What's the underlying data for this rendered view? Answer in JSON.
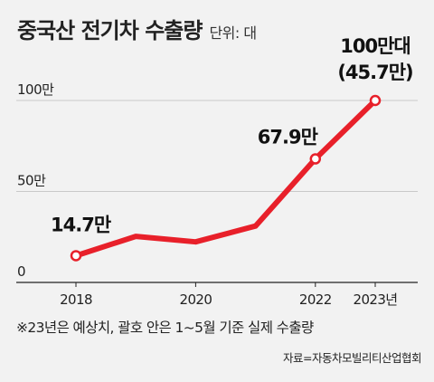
{
  "header": {
    "title": "중국산 전기차 수출량",
    "unit": "단위: 대"
  },
  "chart_data": {
    "type": "line",
    "title": "중국산 전기차 수출량",
    "unit": "단위: 대",
    "x": [
      2018,
      2019,
      2020,
      2021,
      2022,
      2023
    ],
    "x_tick_labels": [
      "2018",
      "2020",
      "2022",
      "2023년"
    ],
    "x_tick_values": [
      2018,
      2020,
      2022,
      2023
    ],
    "y_tick_labels": [
      "0",
      "50만",
      "100만"
    ],
    "y_tick_values": [
      0,
      500000,
      1000000
    ],
    "ylim": [
      0,
      1000000
    ],
    "grid": "horizontal",
    "series": [
      {
        "values": [
          147000,
          253000,
          223000,
          310000,
          679000,
          1000000
        ],
        "color": "#e8202a"
      }
    ],
    "markers": [
      2018,
      2022,
      2023
    ],
    "annotations": [
      {
        "x": 2018,
        "text": "14.7만"
      },
      {
        "x": 2022,
        "text": "67.9만"
      },
      {
        "x": 2023,
        "text": "100만대",
        "subtext": "(45.7만)"
      }
    ]
  },
  "footnote": "※23년은 예상치, 괄호 안은 1~5월 기준 실제 수출량",
  "source": "자료=자동차모빌리티산업협회"
}
